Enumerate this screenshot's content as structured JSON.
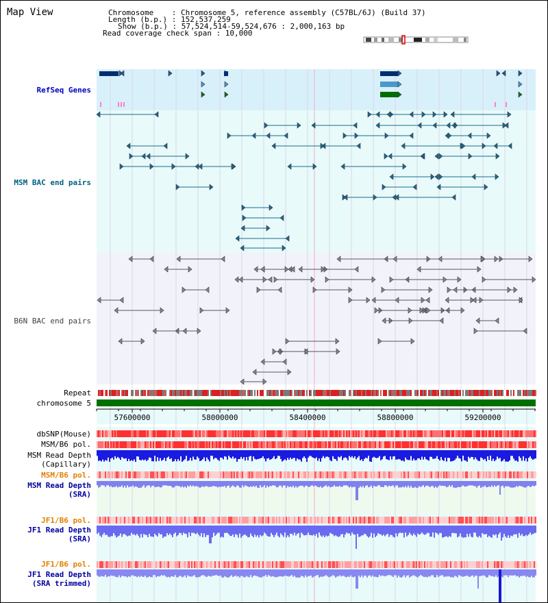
{
  "header": {
    "title": "Map View",
    "chromosome_line": "Chromosome    : Chromosome 5, reference assembly (C57BL/6J) (Build 37)",
    "length_line": "Length (b.p.) : 152,537,259",
    "show_line": "Show (b.p.) : 57,524,514-59,524,676 : 2,000,163 bp",
    "coverage_line": "Read coverage check span : 10,000"
  },
  "tracks": {
    "refseq": "RefSeq Genes",
    "msm_bac": "MSM BAC end pairs",
    "b6n_bac": "B6N BAC end pairs",
    "repeat": "Repeat",
    "chromosome": "chromosome 5",
    "dbsnp": "dbSNP(Mouse)",
    "msm_b6_pol_1": "MSM/B6 pol.",
    "msm_read_depth_cap_1": "MSM Read Depth",
    "msm_read_depth_cap_2": "(Capillary)",
    "msm_b6_pol_2": "MSM/B6 pol.",
    "msm_read_depth_sra_1": "MSM Read Depth",
    "msm_read_depth_sra_2": "(SRA)",
    "jf1_b6_pol_1": "JF1/B6 pol.",
    "jf1_read_depth_1": "JF1 Read Depth",
    "jf1_read_depth_2": "(SRA)",
    "jf1_b6_pol_2": "JF1/B6 pol.",
    "jf1_read_depth_trim_1": "JF1 Read Depth",
    "jf1_read_depth_trim_2": "(SRA trimmed)"
  },
  "axis": {
    "ticks": [
      "57600000",
      "58000000",
      "58400000",
      "58800000",
      "59200000"
    ]
  },
  "colors": {
    "refseq_label": "#0000c0",
    "msm_bac_label": "#006080",
    "b6n_label": "#404040",
    "orange_label": "#e08000",
    "blue_label": "#0000a0",
    "refseq_bg": "#d8f0fa",
    "track_bg": "#e8fafa",
    "msm_feature": "#1a6a8a",
    "b6n_feature": "#555555",
    "chrom_bar": "#007000",
    "depth_blue": "#2020e0",
    "pol_red": "#ff4040"
  }
}
